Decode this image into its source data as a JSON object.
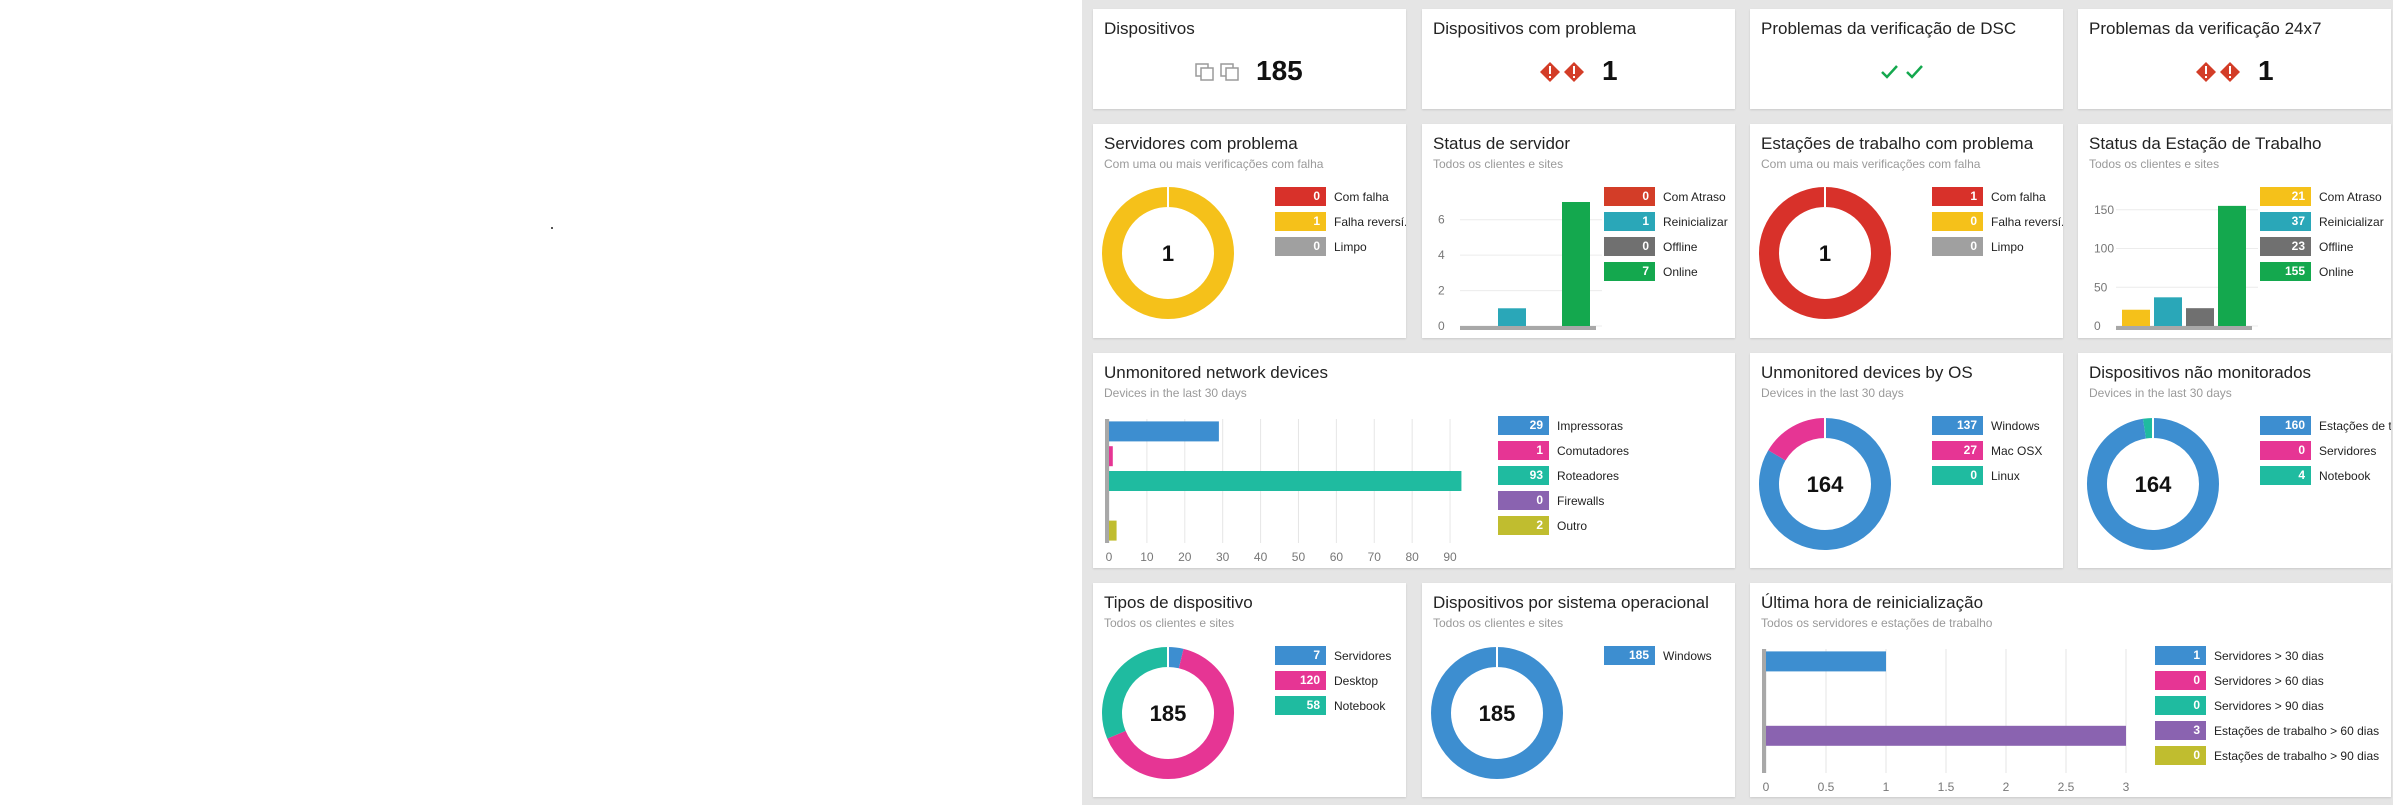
{
  "colors": {
    "red": "#d8312a",
    "yellow": "#f5c11a",
    "gray": "#a0a0a0",
    "darkgray": "#707070",
    "blue": "#3d8ed0",
    "teal": "#2aa7b8",
    "green": "#14a84e",
    "pink": "#e63594",
    "cyan": "#1fbba0",
    "purple": "#8a63b0",
    "olive": "#c0bd2f",
    "orange_red": "#d33d28"
  },
  "dispositivos": {
    "title": "Dispositivos",
    "value": "185",
    "icon": "devices-icon"
  },
  "dispositivos_problema": {
    "title": "Dispositivos com problema",
    "value": "1",
    "icon": "alert-icon"
  },
  "dsc": {
    "title": "Problemas da verificação de DSC",
    "icon": "check-icon"
  },
  "v247": {
    "title": "Problemas da verificação 24x7",
    "value": "1",
    "icon": "alert-icon"
  },
  "servidores_problema": {
    "title": "Servidores com problema",
    "subtitle": "Com uma ou mais verificações com falha",
    "center": "1",
    "legend": [
      {
        "value": "0",
        "label": "Com falha",
        "color": "#d8312a"
      },
      {
        "value": "1",
        "label": "Falha reversí.",
        "color": "#f5c11a"
      },
      {
        "value": "0",
        "label": "Limpo",
        "color": "#a0a0a0"
      }
    ],
    "chart_data": {
      "type": "pie",
      "categories": [
        "Com falha",
        "Falha reversí.",
        "Limpo"
      ],
      "values": [
        0,
        1,
        0
      ]
    }
  },
  "status_servidor": {
    "title": "Status de servidor",
    "subtitle": "Todos os clientes e sites",
    "legend": [
      {
        "value": "0",
        "label": "Com Atraso",
        "color": "#d33d28"
      },
      {
        "value": "1",
        "label": "Reinicializar",
        "color": "#2aa7b8"
      },
      {
        "value": "0",
        "label": "Offline",
        "color": "#707070"
      },
      {
        "value": "7",
        "label": "Online",
        "color": "#14a84e"
      }
    ],
    "chart_data": {
      "type": "bar",
      "categories": [
        "Com Atraso",
        "Reinicializar",
        "Offline",
        "Online"
      ],
      "values": [
        0,
        1,
        0,
        7
      ],
      "yticks": [
        "0",
        "2",
        "4",
        "6"
      ],
      "ylim": [
        0,
        7
      ]
    }
  },
  "estacoes_problema": {
    "title": "Estações de trabalho com problema",
    "subtitle": "Com uma ou mais verificações com falha",
    "center": "1",
    "legend": [
      {
        "value": "1",
        "label": "Com falha",
        "color": "#d8312a"
      },
      {
        "value": "0",
        "label": "Falha reversí.",
        "color": "#f5c11a"
      },
      {
        "value": "0",
        "label": "Limpo",
        "color": "#a0a0a0"
      }
    ],
    "chart_data": {
      "type": "pie",
      "categories": [
        "Com falha",
        "Falha reversí.",
        "Limpo"
      ],
      "values": [
        1,
        0,
        0
      ]
    }
  },
  "status_estacao": {
    "title": "Status da Estação de Trabalho",
    "subtitle": "Todos os clientes e sites",
    "legend": [
      {
        "value": "21",
        "label": "Com Atraso",
        "color": "#f5c11a"
      },
      {
        "value": "37",
        "label": "Reinicializar",
        "color": "#2aa7b8"
      },
      {
        "value": "23",
        "label": "Offline",
        "color": "#707070"
      },
      {
        "value": "155",
        "label": "Online",
        "color": "#14a84e"
      }
    ],
    "chart_data": {
      "type": "bar",
      "categories": [
        "Com Atraso",
        "Reinicializar",
        "Offline",
        "Online"
      ],
      "values": [
        21,
        37,
        23,
        155
      ],
      "yticks": [
        "0",
        "50",
        "100",
        "150"
      ],
      "ylim": [
        0,
        160
      ]
    }
  },
  "unmonitored_network": {
    "title": "Unmonitored network devices",
    "subtitle": "Devices in the last 30 days",
    "legend": [
      {
        "value": "29",
        "label": "Impressoras",
        "color": "#3d8ed0"
      },
      {
        "value": "1",
        "label": "Comutadores",
        "color": "#e63594"
      },
      {
        "value": "93",
        "label": "Roteadores",
        "color": "#1fbba0"
      },
      {
        "value": "0",
        "label": "Firewalls",
        "color": "#8a63b0"
      },
      {
        "value": "2",
        "label": "Outro",
        "color": "#c0bd2f"
      }
    ],
    "chart_data": {
      "type": "bar",
      "orientation": "horizontal",
      "categories": [
        "Impressoras",
        "Comutadores",
        "Roteadores",
        "Firewalls",
        "Outro"
      ],
      "values": [
        29,
        1,
        93,
        0,
        2
      ],
      "xticks": [
        "0",
        "10",
        "20",
        "30",
        "40",
        "50",
        "60",
        "70",
        "80",
        "90"
      ],
      "xlim": [
        0,
        95
      ]
    }
  },
  "unmonitored_os": {
    "title": "Unmonitored devices by OS",
    "subtitle": "Devices in the last 30 days",
    "center": "164",
    "legend": [
      {
        "value": "137",
        "label": "Windows",
        "color": "#3d8ed0"
      },
      {
        "value": "27",
        "label": "Mac OSX",
        "color": "#e63594"
      },
      {
        "value": "0",
        "label": "Linux",
        "color": "#1fbba0"
      }
    ],
    "chart_data": {
      "type": "pie",
      "categories": [
        "Windows",
        "Mac OSX",
        "Linux"
      ],
      "values": [
        137,
        27,
        0
      ]
    }
  },
  "nao_monitorados": {
    "title": "Dispositivos não monitorados",
    "subtitle": "Devices in the last 30 days",
    "center": "164",
    "legend": [
      {
        "value": "160",
        "label": "Estações de t...",
        "color": "#3d8ed0"
      },
      {
        "value": "0",
        "label": "Servidores",
        "color": "#e63594"
      },
      {
        "value": "4",
        "label": "Notebook",
        "color": "#1fbba0"
      }
    ],
    "chart_data": {
      "type": "pie",
      "categories": [
        "Estações de t...",
        "Servidores",
        "Notebook"
      ],
      "values": [
        160,
        0,
        4
      ]
    }
  },
  "tipos": {
    "title": "Tipos de dispositivo",
    "subtitle": "Todos os clientes e sites",
    "center": "185",
    "legend": [
      {
        "value": "7",
        "label": "Servidores",
        "color": "#3d8ed0"
      },
      {
        "value": "120",
        "label": "Desktop",
        "color": "#e63594"
      },
      {
        "value": "58",
        "label": "Notebook",
        "color": "#1fbba0"
      }
    ],
    "chart_data": {
      "type": "pie",
      "categories": [
        "Servidores",
        "Desktop",
        "Notebook"
      ],
      "values": [
        7,
        120,
        58
      ]
    }
  },
  "por_so": {
    "title": "Dispositivos por sistema operacional",
    "subtitle": "Todos os clientes e sites",
    "center": "185",
    "legend": [
      {
        "value": "185",
        "label": "Windows",
        "color": "#3d8ed0"
      }
    ],
    "chart_data": {
      "type": "pie",
      "categories": [
        "Windows"
      ],
      "values": [
        185
      ]
    }
  },
  "ultima_hora": {
    "title": "Última hora de reinicialização",
    "subtitle": "Todos os servidores e estações de trabalho",
    "legend": [
      {
        "value": "1",
        "label": "Servidores > 30 dias",
        "color": "#3d8ed0"
      },
      {
        "value": "0",
        "label": "Servidores > 60 dias",
        "color": "#e63594"
      },
      {
        "value": "0",
        "label": "Servidores > 90 dias",
        "color": "#1fbba0"
      },
      {
        "value": "3",
        "label": "Estações de trabalho > 60 dias",
        "color": "#8a63b0"
      },
      {
        "value": "0",
        "label": "Estações de trabalho > 90 dias",
        "color": "#c0bd2f"
      }
    ],
    "chart_data": {
      "type": "bar",
      "orientation": "horizontal",
      "categories": [
        "Servidores > 30 dias",
        "Servidores > 60 dias",
        "Servidores > 90 dias",
        "Estações de trabalho > 60 dias",
        "Estações de trabalho > 90 dias"
      ],
      "values": [
        1,
        0,
        0,
        3,
        0
      ],
      "xticks": [
        "0",
        "0.5",
        "1",
        "1.5",
        "2",
        "2.5",
        "3"
      ],
      "xlim": [
        0,
        3
      ]
    }
  }
}
